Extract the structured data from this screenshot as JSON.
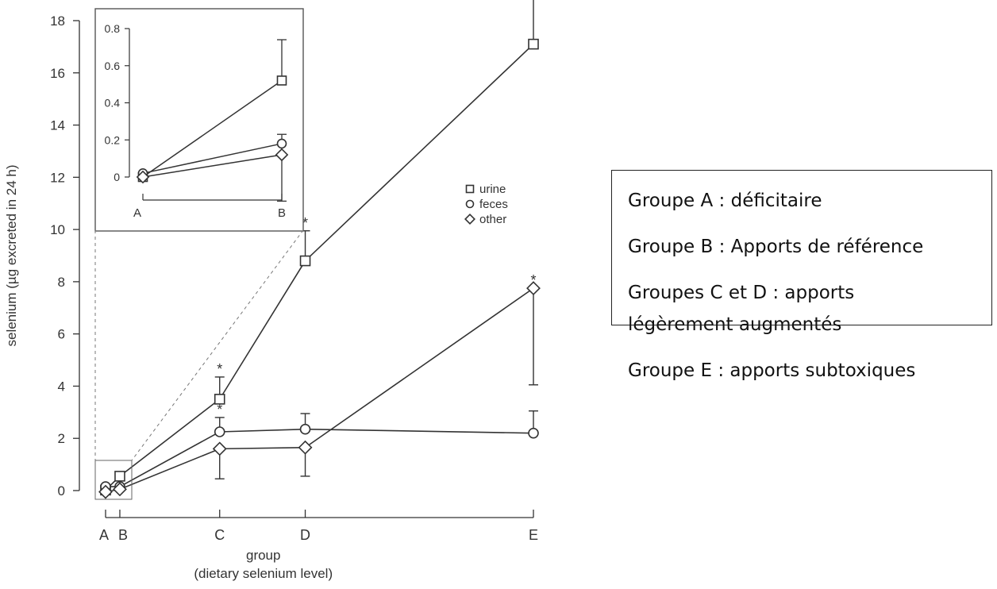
{
  "chart_data": [
    {
      "type": "line",
      "title": "",
      "xlabel": "group",
      "xlabel2": "(dietary selenium level)",
      "ylabel": "selenium (µg excreted in 24 h)",
      "ylim": [
        0,
        18
      ],
      "yticks": [
        "0",
        "2",
        "4",
        "6",
        "8",
        "10",
        "12",
        "14",
        "16",
        "18"
      ],
      "categories": [
        "A",
        "B",
        "C",
        "D",
        "E"
      ],
      "x": [
        0.0,
        0.5,
        4.0,
        7.0,
        15.0
      ],
      "series": [
        {
          "name": "urine",
          "marker": "square",
          "values": [
            0.02,
            0.55,
            3.5,
            8.8,
            17.1
          ],
          "err_dir": "up",
          "err": [
            null,
            null,
            0.85,
            1.15,
            2.05
          ],
          "sig": [
            false,
            false,
            true,
            true,
            true
          ]
        },
        {
          "name": "feces",
          "marker": "circle",
          "values": [
            0.15,
            0.15,
            2.25,
            2.35,
            2.2
          ],
          "err_dir": "up",
          "err": [
            null,
            null,
            0.55,
            0.6,
            0.85
          ],
          "sig": [
            false,
            false,
            true,
            false,
            false
          ]
        },
        {
          "name": "other",
          "marker": "diamond",
          "values": [
            -0.05,
            0.05,
            1.6,
            1.65,
            7.75
          ],
          "err_dir": "down",
          "err": [
            null,
            null,
            1.15,
            1.1,
            3.7
          ],
          "sig": [
            false,
            false,
            false,
            false,
            true
          ]
        }
      ],
      "significance_marker": "*",
      "legend": [
        "urine",
        "feces",
        "other"
      ],
      "legend_position": "right"
    },
    {
      "type": "line",
      "title": "",
      "ylim": [
        -0.05,
        0.85
      ],
      "yticks": [
        "0",
        "0.2",
        "0.4",
        "0.6",
        "0.8"
      ],
      "categories": [
        "A",
        "B"
      ],
      "series": [
        {
          "name": "urine",
          "marker": "square",
          "values": [
            0.0,
            0.52
          ],
          "err_dir": "up",
          "err": [
            null,
            0.22
          ]
        },
        {
          "name": "feces",
          "marker": "circle",
          "values": [
            0.02,
            0.18
          ],
          "err_dir": "up",
          "err": [
            null,
            0.05
          ]
        },
        {
          "name": "other",
          "marker": "diamond",
          "values": [
            0.0,
            0.12
          ],
          "err_dir": "down",
          "err": [
            null,
            0.25
          ]
        }
      ]
    }
  ],
  "info_box": {
    "line1": "Groupe A : déficitaire",
    "line2": "Groupe B : Apports de référence",
    "line3a": "Groupes C et D : apports",
    "line3b": "légèrement augmentés",
    "line4": "Groupe E : apports subtoxiques"
  }
}
